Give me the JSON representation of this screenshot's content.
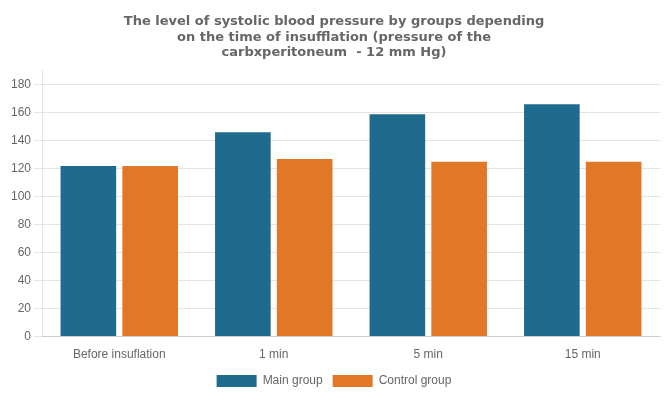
{
  "chart_data": {
    "type": "bar",
    "title": "The level of systolic blood pressure by groups depending\non the time of insufflation (pressure of the\ncarbxperitoneum  - 12 mm Hg)",
    "categories": [
      "Before insuflation",
      "1 min",
      "5 min",
      "15 min"
    ],
    "series": [
      {
        "name": "Main group",
        "color": "#1F6B8E",
        "values": [
          122,
          146,
          159,
          166
        ]
      },
      {
        "name": "Control group",
        "color": "#E07828",
        "values": [
          122,
          127,
          125,
          125
        ]
      }
    ],
    "ylim": [
      0,
      190
    ],
    "yticks": [
      0,
      20,
      40,
      60,
      80,
      100,
      120,
      140,
      160,
      180
    ],
    "grid": "y",
    "legend": "bottom"
  }
}
